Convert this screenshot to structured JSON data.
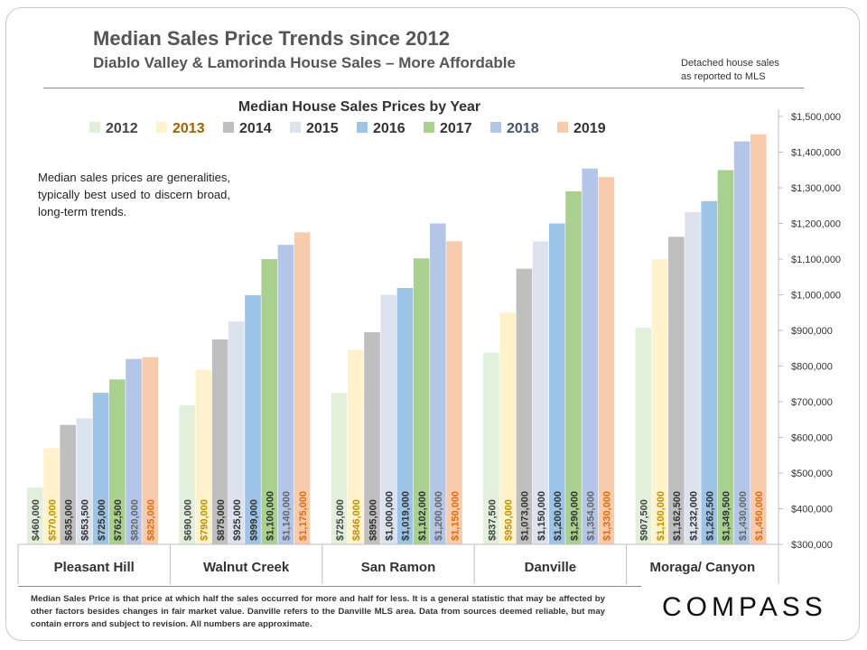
{
  "header": {
    "title": "Median Sales Price Trends since 2012",
    "subtitle": "Diablo Valley & Lamorinda House Sales – More Affordable",
    "source_line1": "Detached house sales",
    "source_line2": "as reported to MLS"
  },
  "side_note": "Median sales prices are generalities, typically best used to discern broad, long-term trends.",
  "footnote": "Median Sales Price is that price at which half the sales occurred for more and half for less. It is a general statistic that may be affected by other factors besides changes in fair market value. Danville refers to the Danville MLS area. Data from sources deemed reliable, but may contain errors and subject to revision.  All numbers are approximate.",
  "brand": "COMPASS",
  "chart_data": {
    "type": "bar",
    "title": "Median House Sales Prices by Year",
    "categories": [
      "Pleasant Hill",
      "Walnut Creek",
      "San Ramon",
      "Danville",
      "Moraga/ Canyon"
    ],
    "series": [
      {
        "name": "2012",
        "color": "#e2efda",
        "label_color": "#444444",
        "legend_color": "#444444",
        "values": [
          460000,
          690000,
          725000,
          837500,
          907500
        ],
        "labels": [
          "$460,000",
          "$690,000",
          "$725,000",
          "$837,500",
          "$907,500"
        ]
      },
      {
        "name": "2013",
        "color": "#fff2cc",
        "label_color": "#bf9000",
        "legend_color": "#9c6500",
        "values": [
          570000,
          790000,
          846000,
          950000,
          1100000
        ],
        "labels": [
          "$570,000",
          "$790,000",
          "$846,000",
          "$950,000",
          "$1,100,000"
        ]
      },
      {
        "name": "2014",
        "color": "#bfbfbf",
        "label_color": "#333333",
        "legend_color": "#333333",
        "values": [
          635000,
          875000,
          895000,
          1073000,
          1162500
        ],
        "labels": [
          "$635,000",
          "$875,000",
          "$895,000",
          "$1,073,000",
          "$1,162,500"
        ]
      },
      {
        "name": "2015",
        "color": "#dde3ee",
        "label_color": "#333333",
        "legend_color": "#333333",
        "values": [
          653500,
          925000,
          1000000,
          1150000,
          1232000
        ],
        "labels": [
          "$653,500",
          "$925,000",
          "$1,000,000",
          "$1,150,000",
          "$1,232,000"
        ]
      },
      {
        "name": "2016",
        "color": "#9dc3e6",
        "label_color": "#333333",
        "legend_color": "#333333",
        "values": [
          725000,
          999000,
          1019000,
          1200000,
          1262500
        ],
        "labels": [
          "$725,000",
          "$999,000",
          "$1,019,000",
          "$1,200,000",
          "$1,262,500"
        ]
      },
      {
        "name": "2017",
        "color": "#a9d08e",
        "label_color": "#333333",
        "legend_color": "#333333",
        "values": [
          762500,
          1100000,
          1102000,
          1290000,
          1349500
        ],
        "labels": [
          "$762,500",
          "$1,100,000",
          "$1,102,000",
          "$1,290,000",
          "$1,349,500"
        ]
      },
      {
        "name": "2018",
        "color": "#b4c6e7",
        "label_color": "#666666",
        "legend_color": "#44546a",
        "values": [
          820000,
          1140000,
          1200000,
          1354000,
          1430000
        ],
        "labels": [
          "$820,000",
          "$1,140,000",
          "$1,200,000",
          "$1,354,000",
          "$1,430,000"
        ]
      },
      {
        "name": "2019",
        "color": "#f8cbad",
        "label_color": "#e26b0a",
        "legend_color": "#333333",
        "values": [
          825000,
          1175000,
          1150000,
          1330000,
          1450000
        ],
        "labels": [
          "$825,000",
          "$1,175,000",
          "$1,150,000",
          "$1,330,000",
          "$1,450,000"
        ]
      }
    ],
    "y_ticks": [
      "$300,000",
      "$400,000",
      "$500,000",
      "$600,000",
      "$700,000",
      "$800,000",
      "$900,000",
      "$1,000,000",
      "$1,100,000",
      "$1,200,000",
      "$1,300,000",
      "$1,400,000",
      "$1,500,000"
    ],
    "ylim": [
      300000,
      1500000
    ],
    "y_axis_side": "right",
    "legend_position": "top",
    "grid": false
  }
}
